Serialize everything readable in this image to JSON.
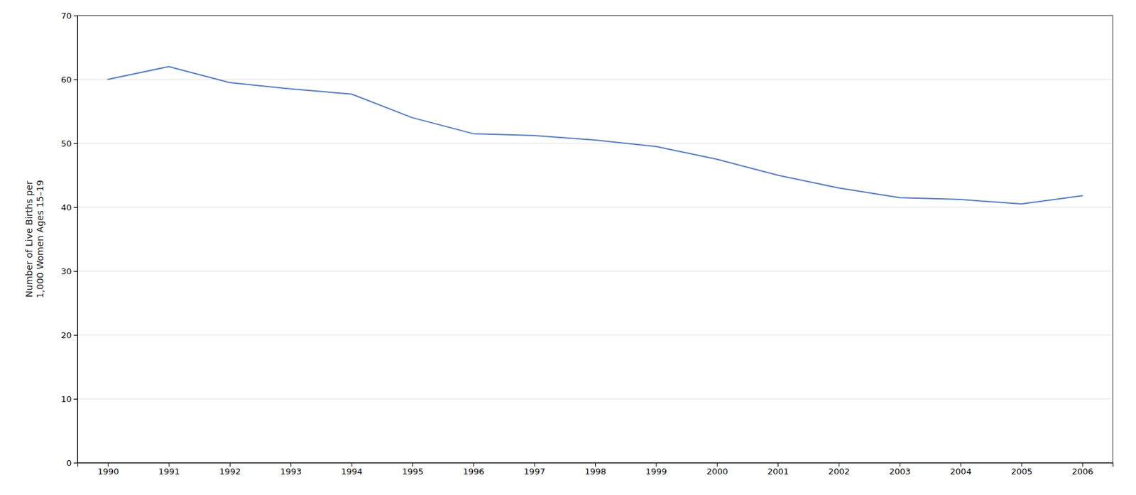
{
  "chart_data": {
    "type": "line",
    "ylabel": "Number of Live Births per\n1,000 Women Ages 15–19",
    "x": [
      1990,
      1991,
      1992,
      1993,
      1994,
      1995,
      1996,
      1997,
      1998,
      1999,
      2000,
      2001,
      2002,
      2003,
      2004,
      2005,
      2006
    ],
    "values": [
      60.0,
      62.0,
      59.5,
      58.5,
      57.7,
      54.0,
      51.5,
      51.2,
      50.5,
      49.5,
      47.5,
      45.0,
      43.0,
      41.5,
      41.2,
      40.5,
      41.8
    ],
    "color": "#5B7FBF",
    "xlim": [
      1989.5,
      2006.5
    ],
    "xticks": [
      1990,
      1991,
      1992,
      1993,
      1994,
      1995,
      1996,
      1997,
      1998,
      1999,
      2000,
      2001,
      2002,
      2003,
      2004,
      2005,
      2006
    ],
    "ylim": [
      0,
      70
    ],
    "yticks": [
      0,
      10,
      20,
      30,
      40,
      50,
      60,
      70
    ],
    "grid": "y"
  }
}
